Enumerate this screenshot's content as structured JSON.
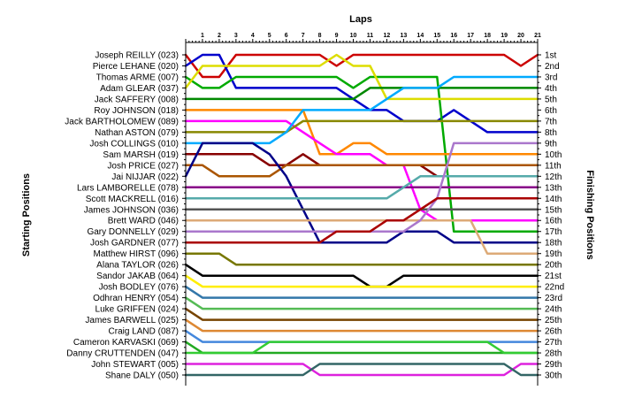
{
  "chart_data": {
    "type": "line",
    "title": "",
    "xlabel": "Laps",
    "ylabel_left": "Starting Positions",
    "ylabel_right": "Finishing Positions",
    "x": [
      0,
      1,
      2,
      3,
      4,
      5,
      6,
      7,
      8,
      9,
      10,
      11,
      12,
      13,
      14,
      15,
      16,
      17,
      18,
      19,
      20,
      21
    ],
    "x_tick_labels": [
      "1",
      "2",
      "3",
      "4",
      "5",
      "6",
      "7",
      "8",
      "9",
      "10",
      "11",
      "12",
      "13",
      "14",
      "15",
      "16",
      "17",
      "18",
      "19",
      "20",
      "21"
    ],
    "ylim": [
      1,
      30
    ],
    "y_inverted": true,
    "drivers_start_order": [
      "Joseph REILLY (023)",
      "Pierce LEHANE (020)",
      "Thomas ARME (007)",
      "Adam GLEAR (037)",
      "Jack SAFFERY (008)",
      "Roy JOHNSON (018)",
      "Jack BARTHOLOMEW (089)",
      "Nathan ASTON (079)",
      "Josh COLLINGS (010)",
      "Sam MARSH (019)",
      "Josh PRICE (027)",
      "Jai NIJJAR (022)",
      "Lars LAMBORELLE (078)",
      "Scott MACKRELL (016)",
      "James JOHNSON (036)",
      "Brett WARD (046)",
      "Gary DONNELLY (029)",
      "Josh GARDNER (077)",
      "Matthew HIRST (096)",
      "Alana TAYLOR (026)",
      "Sandor JAKAB (064)",
      "Josh BODLEY (076)",
      "Odhran HENRY (054)",
      "Luke GRIFFEN (024)",
      "James BARWELL (025)",
      "Craig LAND (087)",
      "Cameron KARVASKI (069)",
      "Danny CRUTTENDEN (047)",
      "John STEWART (005)",
      "Shane DALY (050)"
    ],
    "finishing_positions": [
      "1st",
      "2nd",
      "3rd",
      "4th",
      "5th",
      "6th",
      "7th",
      "8th",
      "9th",
      "10th",
      "11th",
      "12th",
      "13th",
      "14th",
      "15th",
      "16th",
      "17th",
      "18th",
      "19th",
      "20th",
      "21st",
      "22nd",
      "23rd",
      "24th",
      "25th",
      "26th",
      "27th",
      "28th",
      "29th",
      "30th"
    ],
    "series": [
      {
        "color": "#cc0000",
        "values": [
          1,
          3,
          3,
          1,
          1,
          1,
          1,
          1,
          1,
          2,
          1,
          1,
          1,
          1,
          1,
          1,
          1,
          1,
          1,
          1,
          2,
          1
        ]
      },
      {
        "color": "#0000cc",
        "values": [
          2,
          1,
          1,
          4,
          4,
          4,
          4,
          4,
          4,
          4,
          5,
          6,
          6,
          7,
          7,
          7,
          6,
          7,
          8,
          8,
          8,
          8
        ]
      },
      {
        "color": "#00aa00",
        "values": [
          3,
          4,
          4,
          3,
          3,
          3,
          3,
          3,
          3,
          3,
          4,
          3,
          3,
          3,
          3,
          3,
          17,
          17,
          17,
          17,
          17,
          17
        ]
      },
      {
        "color": "#dddd00",
        "values": [
          4,
          2,
          2,
          2,
          2,
          2,
          2,
          2,
          2,
          1,
          2,
          2,
          5,
          5,
          5,
          5,
          5,
          5,
          5,
          5,
          5,
          5
        ]
      },
      {
        "color": "#008800",
        "values": [
          5,
          5,
          5,
          5,
          5,
          5,
          5,
          5,
          5,
          5,
          5,
          4,
          4,
          4,
          4,
          4,
          4,
          4,
          4,
          4,
          4,
          4
        ]
      },
      {
        "color": "#ff8800",
        "values": [
          6,
          6,
          6,
          6,
          6,
          6,
          6,
          6,
          10,
          10,
          9,
          9,
          10,
          10,
          10,
          10,
          10,
          10,
          10,
          10,
          10,
          10
        ]
      },
      {
        "color": "#ff00ff",
        "values": [
          7,
          7,
          7,
          7,
          7,
          7,
          7,
          8,
          9,
          10,
          10,
          10,
          11,
          11,
          15,
          16,
          16,
          16,
          16,
          16,
          16,
          16
        ]
      },
      {
        "color": "#888800",
        "values": [
          8,
          8,
          8,
          8,
          8,
          8,
          8,
          7,
          7,
          7,
          7,
          7,
          7,
          7,
          7,
          7,
          7,
          7,
          7,
          7,
          7,
          7
        ]
      },
      {
        "color": "#00aaff",
        "values": [
          9,
          9,
          9,
          9,
          9,
          9,
          8,
          6,
          6,
          6,
          6,
          6,
          5,
          4,
          4,
          4,
          3,
          3,
          3,
          3,
          3,
          3
        ]
      },
      {
        "color": "#880000",
        "values": [
          10,
          10,
          10,
          10,
          10,
          11,
          11,
          10,
          11,
          11,
          11,
          11,
          11,
          11,
          11,
          12,
          12,
          12,
          12,
          12,
          12,
          12
        ]
      },
      {
        "color": "#aa5500",
        "values": [
          11,
          11,
          12,
          12,
          12,
          12,
          11,
          11,
          11,
          11,
          11,
          11,
          11,
          11,
          11,
          11,
          11,
          11,
          11,
          11,
          11,
          11
        ]
      },
      {
        "color": "#000088",
        "values": [
          12,
          9,
          9,
          9,
          9,
          10,
          12,
          15,
          18,
          18,
          18,
          18,
          18,
          17,
          17,
          17,
          18,
          18,
          18,
          18,
          18,
          18
        ]
      },
      {
        "color": "#880088",
        "values": [
          13,
          13,
          13,
          13,
          13,
          13,
          13,
          13,
          13,
          13,
          13,
          13,
          13,
          13,
          13,
          13,
          13,
          13,
          13,
          13,
          13,
          13
        ]
      },
      {
        "color": "#55aaaa",
        "values": [
          14,
          14,
          14,
          14,
          14,
          14,
          14,
          14,
          14,
          14,
          14,
          14,
          14,
          13,
          12,
          12,
          12,
          12,
          12,
          12,
          12,
          12
        ]
      },
      {
        "color": "#555555",
        "values": [
          15,
          15,
          15,
          15,
          15,
          15,
          15,
          15,
          15,
          15,
          15,
          15,
          15,
          15,
          15,
          15,
          15,
          15,
          15,
          15,
          15,
          15
        ]
      },
      {
        "color": "#ddaa77",
        "values": [
          16,
          16,
          16,
          16,
          16,
          16,
          16,
          16,
          16,
          16,
          16,
          16,
          16,
          16,
          16,
          16,
          16,
          16,
          19,
          19,
          19,
          19
        ]
      },
      {
        "color": "#aa77cc",
        "values": [
          17,
          17,
          17,
          17,
          17,
          17,
          17,
          17,
          17,
          17,
          17,
          17,
          17,
          17,
          16,
          14,
          9,
          9,
          9,
          9,
          9,
          9
        ]
      },
      {
        "color": "#aa0000",
        "values": [
          18,
          18,
          18,
          18,
          18,
          18,
          18,
          18,
          18,
          17,
          17,
          17,
          16,
          16,
          15,
          14,
          14,
          14,
          14,
          14,
          14,
          14
        ]
      },
      {
        "color": "#777700",
        "values": [
          19,
          19,
          19,
          20,
          20,
          20,
          20,
          20,
          20,
          20,
          20,
          20,
          20,
          20,
          20,
          20,
          20,
          20,
          20,
          20,
          20,
          20
        ]
      },
      {
        "color": "#000000",
        "values": [
          20,
          21,
          21,
          21,
          21,
          21,
          21,
          21,
          21,
          21,
          21,
          22,
          22,
          21,
          21,
          21,
          21,
          21,
          21,
          21,
          21,
          21
        ]
      },
      {
        "color": "#ffee00",
        "values": [
          21,
          22,
          22,
          22,
          22,
          22,
          22,
          22,
          22,
          22,
          22,
          22,
          22,
          22,
          22,
          22,
          22,
          22,
          22,
          22,
          22,
          22
        ]
      },
      {
        "color": "#3377aa",
        "values": [
          22,
          23,
          23,
          23,
          23,
          23,
          23,
          23,
          23,
          23,
          23,
          23,
          23,
          23,
          23,
          23,
          23,
          23,
          23,
          23,
          23,
          23
        ]
      },
      {
        "color": "#55bb55",
        "values": [
          23,
          24,
          24,
          24,
          24,
          24,
          24,
          24,
          24,
          24,
          24,
          24,
          24,
          24,
          24,
          24,
          24,
          24,
          24,
          24,
          24,
          24
        ]
      },
      {
        "color": "#774400",
        "values": [
          24,
          25,
          25,
          25,
          25,
          25,
          25,
          25,
          25,
          25,
          25,
          25,
          25,
          25,
          25,
          25,
          25,
          25,
          25,
          25,
          25,
          25
        ]
      },
      {
        "color": "#dd8833",
        "values": [
          25,
          26,
          26,
          26,
          26,
          26,
          26,
          26,
          26,
          26,
          26,
          26,
          26,
          26,
          26,
          26,
          26,
          26,
          26,
          26,
          26,
          26
        ]
      },
      {
        "color": "#4488dd",
        "values": [
          26,
          27,
          27,
          27,
          27,
          27,
          27,
          27,
          27,
          27,
          27,
          27,
          27,
          27,
          27,
          27,
          27,
          27,
          27,
          27,
          27,
          27
        ]
      },
      {
        "color": "#22aa22",
        "values": [
          27,
          28,
          28,
          28,
          28,
          28,
          28,
          28,
          28,
          28,
          28,
          28,
          28,
          28,
          28,
          28,
          28,
          28,
          28,
          28,
          28,
          28
        ]
      },
      {
        "color": "#33cc33",
        "values": [
          28,
          28,
          28,
          28,
          28,
          27,
          27,
          27,
          27,
          27,
          27,
          27,
          27,
          27,
          27,
          27,
          27,
          27,
          27,
          28,
          28,
          28
        ]
      },
      {
        "color": "#dd22dd",
        "values": [
          29,
          29,
          29,
          29,
          29,
          29,
          29,
          29,
          30,
          30,
          30,
          30,
          30,
          30,
          30,
          30,
          30,
          30,
          30,
          30,
          29,
          29
        ]
      },
      {
        "color": "#336666",
        "values": [
          30,
          30,
          30,
          30,
          30,
          30,
          30,
          30,
          29,
          29,
          29,
          29,
          29,
          29,
          29,
          29,
          29,
          29,
          29,
          29,
          30,
          30
        ]
      }
    ]
  }
}
